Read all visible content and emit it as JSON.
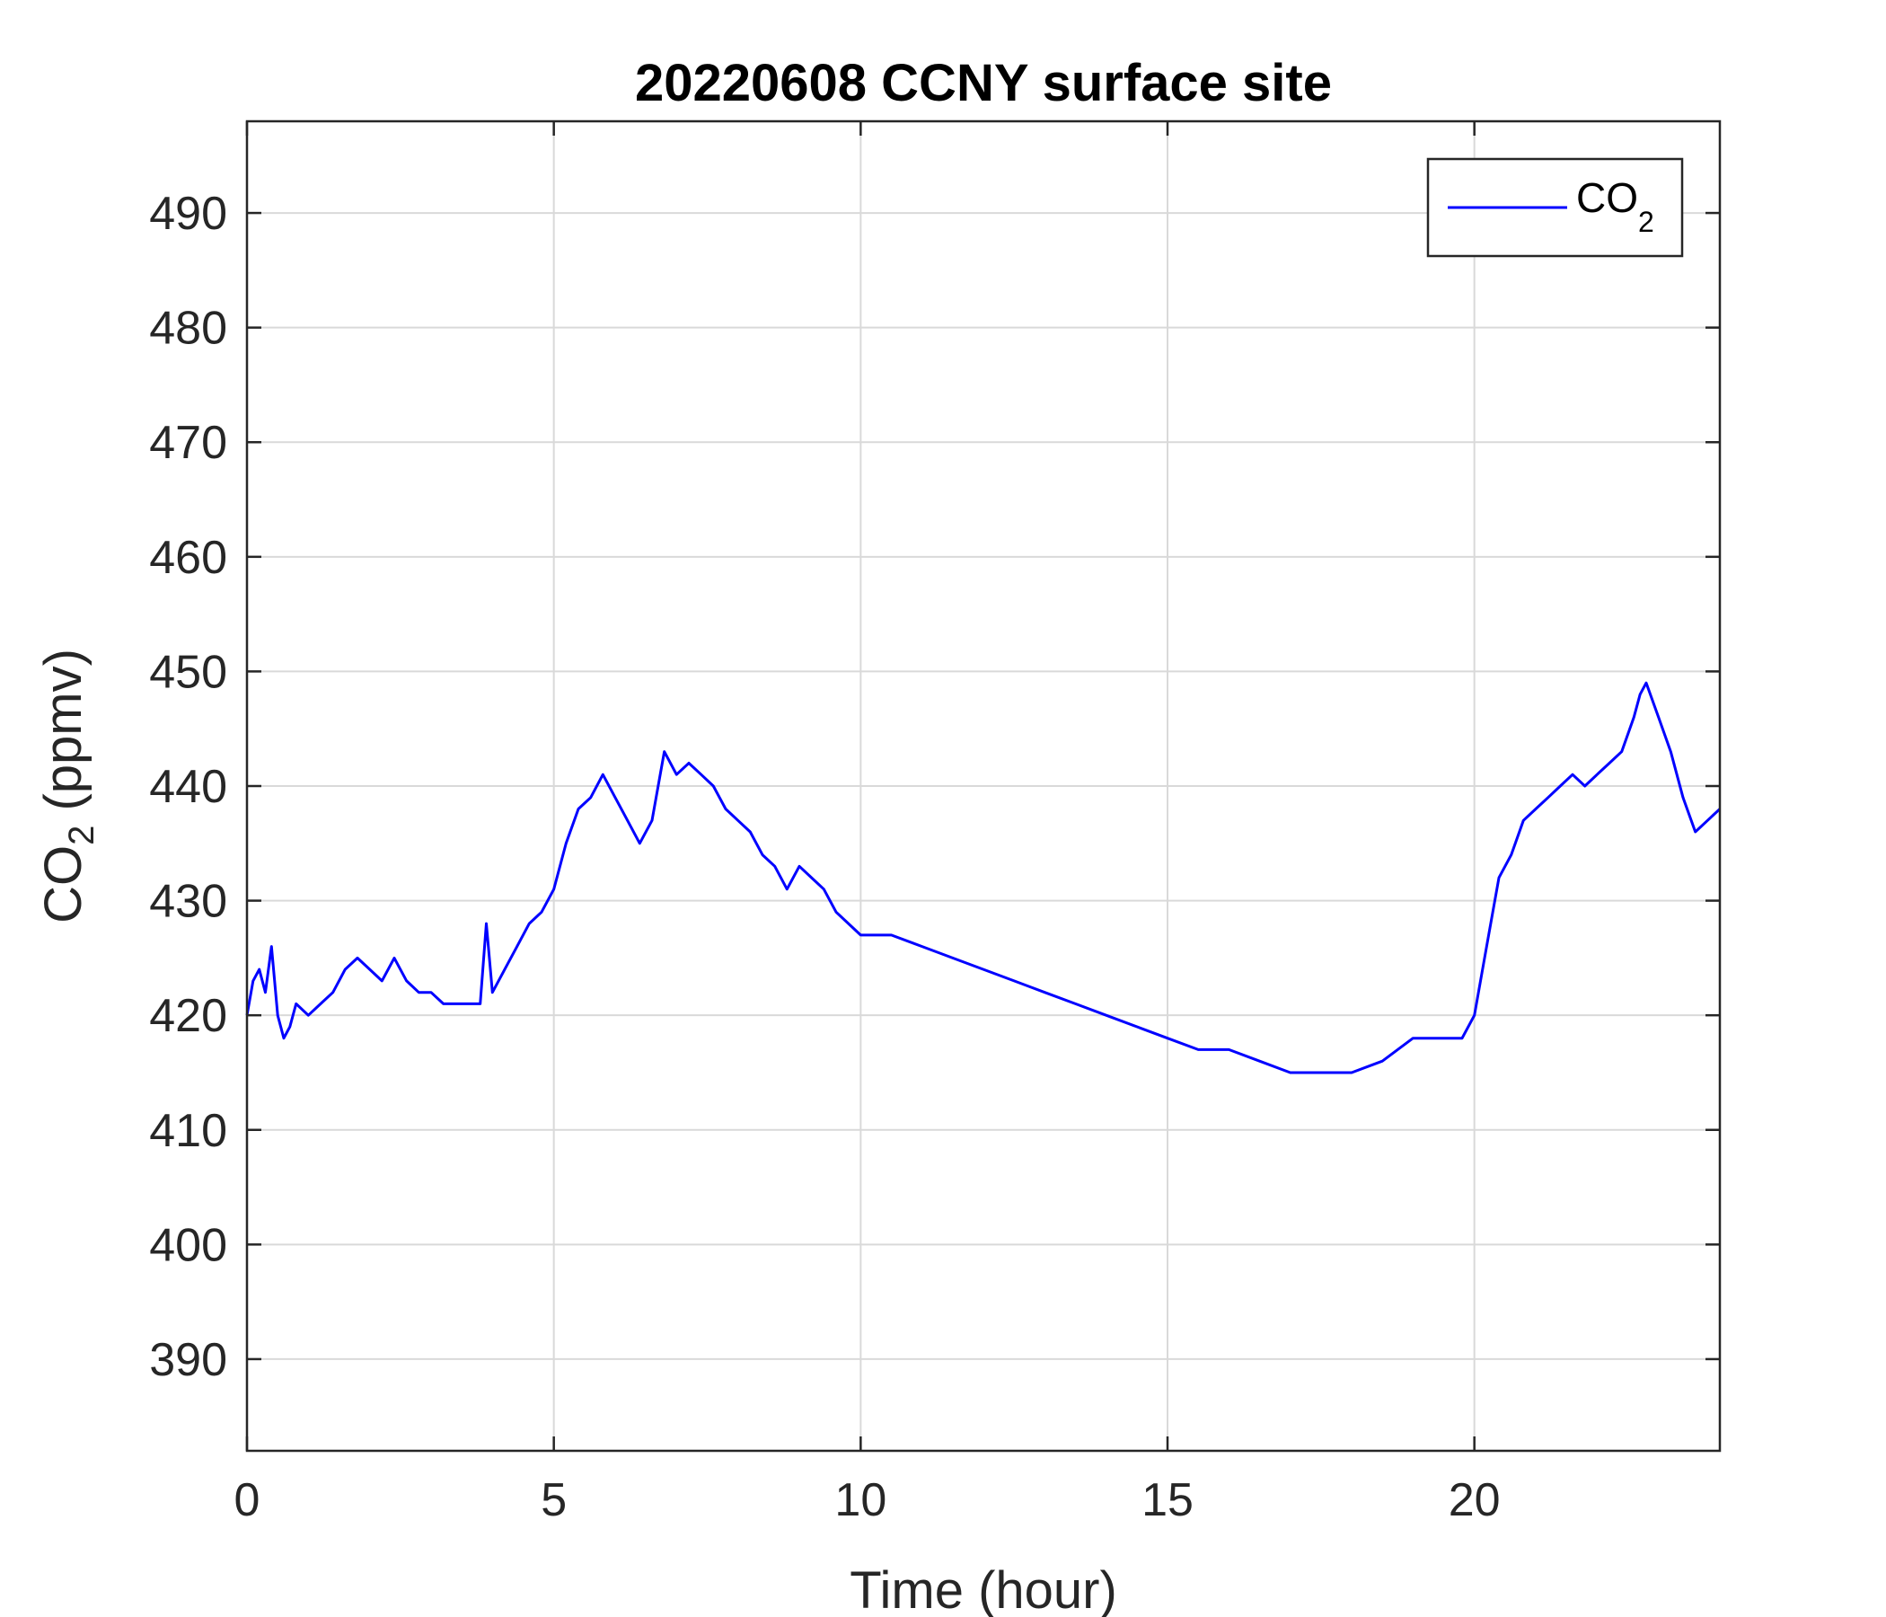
{
  "chart_data": {
    "type": "line",
    "title": "20220608 CCNY surface site",
    "xlabel": "Time (hour)",
    "ylabel": {
      "base": "CO",
      "sub": "2",
      "rest": " (ppmv)"
    },
    "xlim": [
      0,
      24
    ],
    "ylim": [
      382,
      498
    ],
    "xticks": [
      0,
      5,
      10,
      15,
      20
    ],
    "yticks": [
      390,
      400,
      410,
      420,
      430,
      440,
      450,
      460,
      470,
      480,
      490
    ],
    "grid": true,
    "legend_position": "top-right",
    "series": [
      {
        "name": {
          "base": "CO",
          "sub": "2"
        },
        "color": "#0000ff",
        "x": [
          0.0,
          0.1,
          0.2,
          0.3,
          0.4,
          0.5,
          0.6,
          0.7,
          0.8,
          1.0,
          1.2,
          1.4,
          1.6,
          1.8,
          2.0,
          2.2,
          2.4,
          2.6,
          2.8,
          3.0,
          3.2,
          3.4,
          3.6,
          3.8,
          3.9,
          4.0,
          4.2,
          4.4,
          4.6,
          4.8,
          5.0,
          5.2,
          5.4,
          5.6,
          5.8,
          6.0,
          6.2,
          6.4,
          6.6,
          6.8,
          7.0,
          7.2,
          7.4,
          7.6,
          7.8,
          8.0,
          8.2,
          8.4,
          8.6,
          8.8,
          9.0,
          9.2,
          9.4,
          9.6,
          9.8,
          10.0,
          10.5,
          11.0,
          11.5,
          12.0,
          12.5,
          13.0,
          13.5,
          14.0,
          14.5,
          15.0,
          15.5,
          16.0,
          16.5,
          17.0,
          17.5,
          18.0,
          18.5,
          19.0,
          19.5,
          19.8,
          20.0,
          20.2,
          20.4,
          20.6,
          20.8,
          21.0,
          21.2,
          21.4,
          21.6,
          21.8,
          22.0,
          22.2,
          22.4,
          22.6,
          22.7,
          22.8,
          23.0,
          23.2,
          23.4,
          23.6,
          23.8,
          24.0
        ],
        "y": [
          420,
          423,
          424,
          422,
          426,
          420,
          418,
          419,
          421,
          420,
          421,
          422,
          424,
          425,
          424,
          423,
          425,
          423,
          422,
          422,
          421,
          421,
          421,
          421,
          428,
          422,
          424,
          426,
          428,
          429,
          431,
          435,
          438,
          439,
          441,
          439,
          437,
          435,
          437,
          443,
          441,
          442,
          441,
          440,
          438,
          437,
          436,
          434,
          433,
          431,
          433,
          432,
          431,
          429,
          428,
          427,
          427,
          426,
          425,
          424,
          423,
          422,
          421,
          420,
          419,
          418,
          417,
          417,
          416,
          415,
          415,
          415,
          416,
          418,
          418,
          418,
          420,
          426,
          432,
          434,
          437,
          438,
          439,
          440,
          441,
          440,
          441,
          442,
          443,
          446,
          448,
          449,
          446,
          443,
          439,
          436,
          437,
          438
        ]
      }
    ]
  }
}
